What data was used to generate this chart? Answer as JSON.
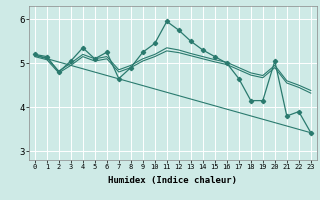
{
  "xlabel": "Humidex (Indice chaleur)",
  "background_color": "#ceeae6",
  "grid_color": "#b0d8d4",
  "line_color": "#2a7a6e",
  "x_ticks": [
    0,
    1,
    2,
    3,
    4,
    5,
    6,
    7,
    8,
    9,
    10,
    11,
    12,
    13,
    14,
    15,
    16,
    17,
    18,
    19,
    20,
    21,
    22,
    23
  ],
  "ylim": [
    2.8,
    6.3
  ],
  "xlim": [
    -0.5,
    23.5
  ],
  "yticks": [
    3,
    4,
    5,
    6
  ],
  "line_main": {
    "x": [
      0,
      1,
      2,
      3,
      4,
      5,
      6,
      7,
      8,
      9,
      10,
      11,
      12,
      13,
      14,
      15,
      16,
      17,
      18,
      19,
      20,
      21,
      22,
      23
    ],
    "y": [
      5.2,
      5.15,
      4.8,
      5.05,
      5.35,
      5.1,
      5.25,
      4.65,
      4.9,
      5.25,
      5.45,
      5.95,
      5.75,
      5.5,
      5.3,
      5.15,
      5.0,
      4.65,
      4.15,
      4.15,
      5.05,
      3.8,
      3.9,
      3.42
    ],
    "marker": "D",
    "markersize": 2.2,
    "linewidth": 0.9
  },
  "line_smooth1": {
    "x": [
      0,
      1,
      2,
      3,
      4,
      5,
      6,
      7,
      8,
      9,
      10,
      11,
      12,
      13,
      14,
      15,
      16,
      17,
      18,
      19,
      20,
      21,
      22,
      23
    ],
    "y": [
      5.18,
      5.12,
      4.82,
      5.0,
      5.2,
      5.1,
      5.15,
      4.85,
      4.95,
      5.1,
      5.2,
      5.35,
      5.3,
      5.22,
      5.15,
      5.08,
      5.02,
      4.9,
      4.78,
      4.72,
      4.95,
      4.6,
      4.5,
      4.38
    ],
    "linewidth": 0.8,
    "linestyle": "-"
  },
  "line_smooth2": {
    "x": [
      0,
      1,
      2,
      3,
      4,
      5,
      6,
      7,
      8,
      9,
      10,
      11,
      12,
      13,
      14,
      15,
      16,
      17,
      18,
      19,
      20,
      21,
      22,
      23
    ],
    "y": [
      5.15,
      5.08,
      4.78,
      4.95,
      5.15,
      5.05,
      5.1,
      4.8,
      4.9,
      5.05,
      5.15,
      5.28,
      5.24,
      5.17,
      5.1,
      5.03,
      4.97,
      4.85,
      4.73,
      4.67,
      4.9,
      4.55,
      4.45,
      4.32
    ],
    "linewidth": 0.8,
    "linestyle": "-"
  },
  "line_regression": {
    "x": [
      0,
      23
    ],
    "y": [
      5.18,
      3.42
    ],
    "linewidth": 0.8,
    "linestyle": "-"
  }
}
